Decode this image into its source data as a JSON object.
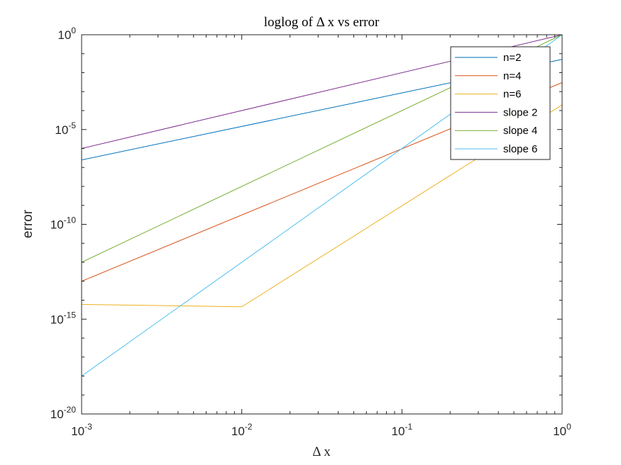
{
  "chart_data": {
    "type": "line",
    "title": "loglog of Δ x vs error",
    "xlabel": "Δ x",
    "ylabel": "error",
    "xscale": "log",
    "yscale": "log",
    "xlim": [
      0.001,
      1
    ],
    "ylim": [
      1e-20,
      1
    ],
    "x_ticks": [
      0.001,
      0.01,
      0.1,
      1
    ],
    "y_ticks": [
      1e-20,
      1e-15,
      1e-10,
      1e-05,
      1
    ],
    "x_tick_labels": [
      {
        "base": "10",
        "exp": "-3"
      },
      {
        "base": "10",
        "exp": "-2"
      },
      {
        "base": "10",
        "exp": "-1"
      },
      {
        "base": "10",
        "exp": "0"
      }
    ],
    "y_tick_labels": [
      {
        "base": "10",
        "exp": "-20"
      },
      {
        "base": "10",
        "exp": "-15"
      },
      {
        "base": "10",
        "exp": "-10"
      },
      {
        "base": "10",
        "exp": "-5"
      },
      {
        "base": "10",
        "exp": "0"
      }
    ],
    "grid": false,
    "legend_position": "top-right",
    "series": [
      {
        "name": "n=2",
        "color": "#0072BD",
        "x": [
          0.001,
          1
        ],
        "y": [
          2.5e-07,
          0.05
        ]
      },
      {
        "name": "n=4",
        "color": "#D95319",
        "x": [
          0.001,
          1
        ],
        "y": [
          1e-13,
          0.003
        ]
      },
      {
        "name": "n=6",
        "color": "#EDB120",
        "x": [
          0.001,
          0.01,
          1
        ],
        "y": [
          6e-15,
          4.5e-15,
          0.0002
        ]
      },
      {
        "name": "slope 2",
        "color": "#7E2F8E",
        "x": [
          0.001,
          1
        ],
        "y": [
          1e-06,
          1
        ]
      },
      {
        "name": "slope 4",
        "color": "#77AC30",
        "x": [
          0.001,
          1
        ],
        "y": [
          1e-12,
          1
        ]
      },
      {
        "name": "slope 6",
        "color": "#4DBEEE",
        "x": [
          0.001,
          1
        ],
        "y": [
          1e-18,
          1
        ]
      }
    ]
  }
}
